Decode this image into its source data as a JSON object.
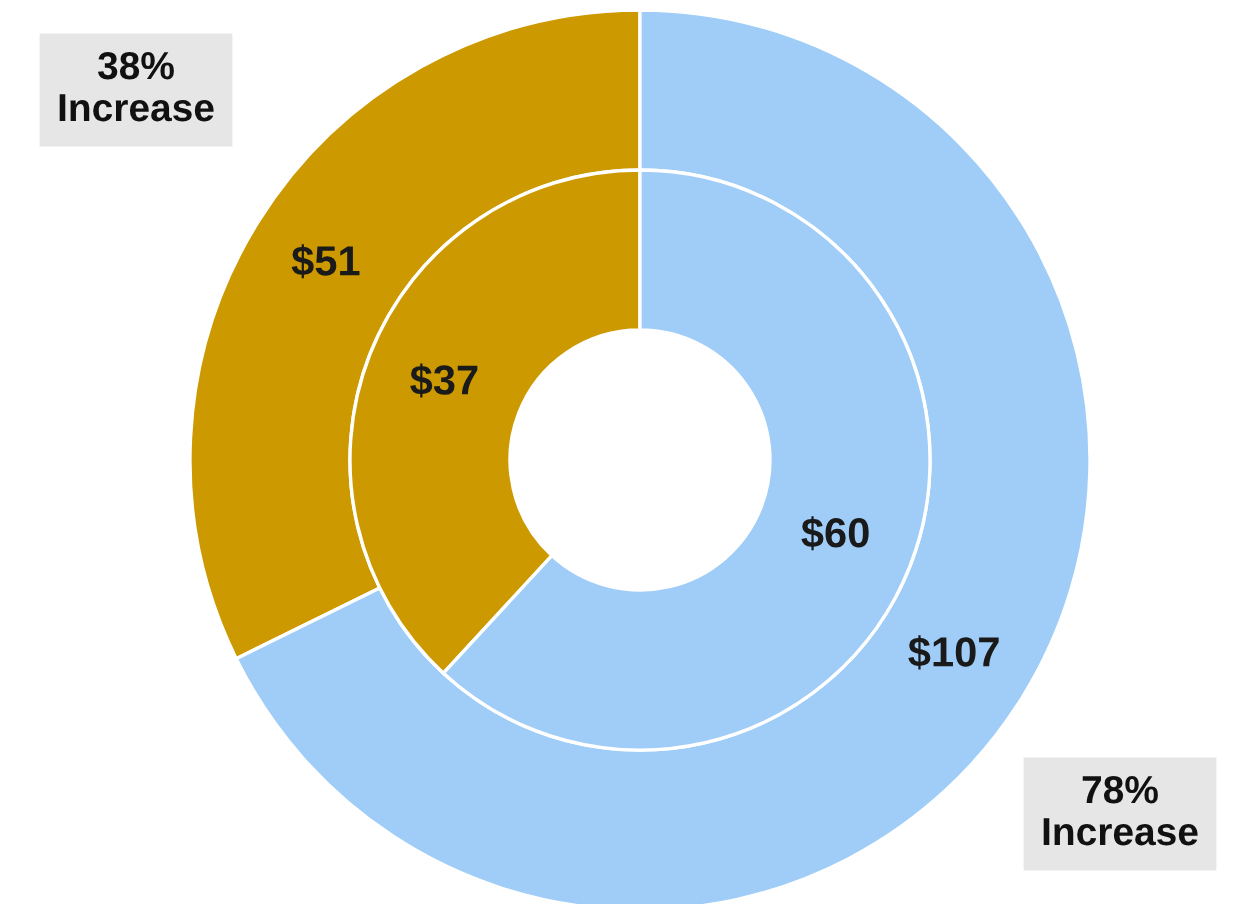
{
  "chart_data": {
    "type": "donut",
    "categories": [
      null,
      null
    ],
    "series": [
      {
        "values": [
          51,
          107
        ],
        "colors": [
          "#cc9900",
          "#9fcdf7"
        ],
        "value_labels": [
          "$51",
          "$107"
        ]
      },
      {
        "values": [
          37,
          60
        ],
        "colors": [
          "#cc9900",
          "#9fcdf7"
        ],
        "value_labels": [
          "$37",
          "$60"
        ]
      }
    ],
    "annotations": [
      "38%\nIncrease",
      "78%\nIncrease"
    ],
    "legend": false
  }
}
